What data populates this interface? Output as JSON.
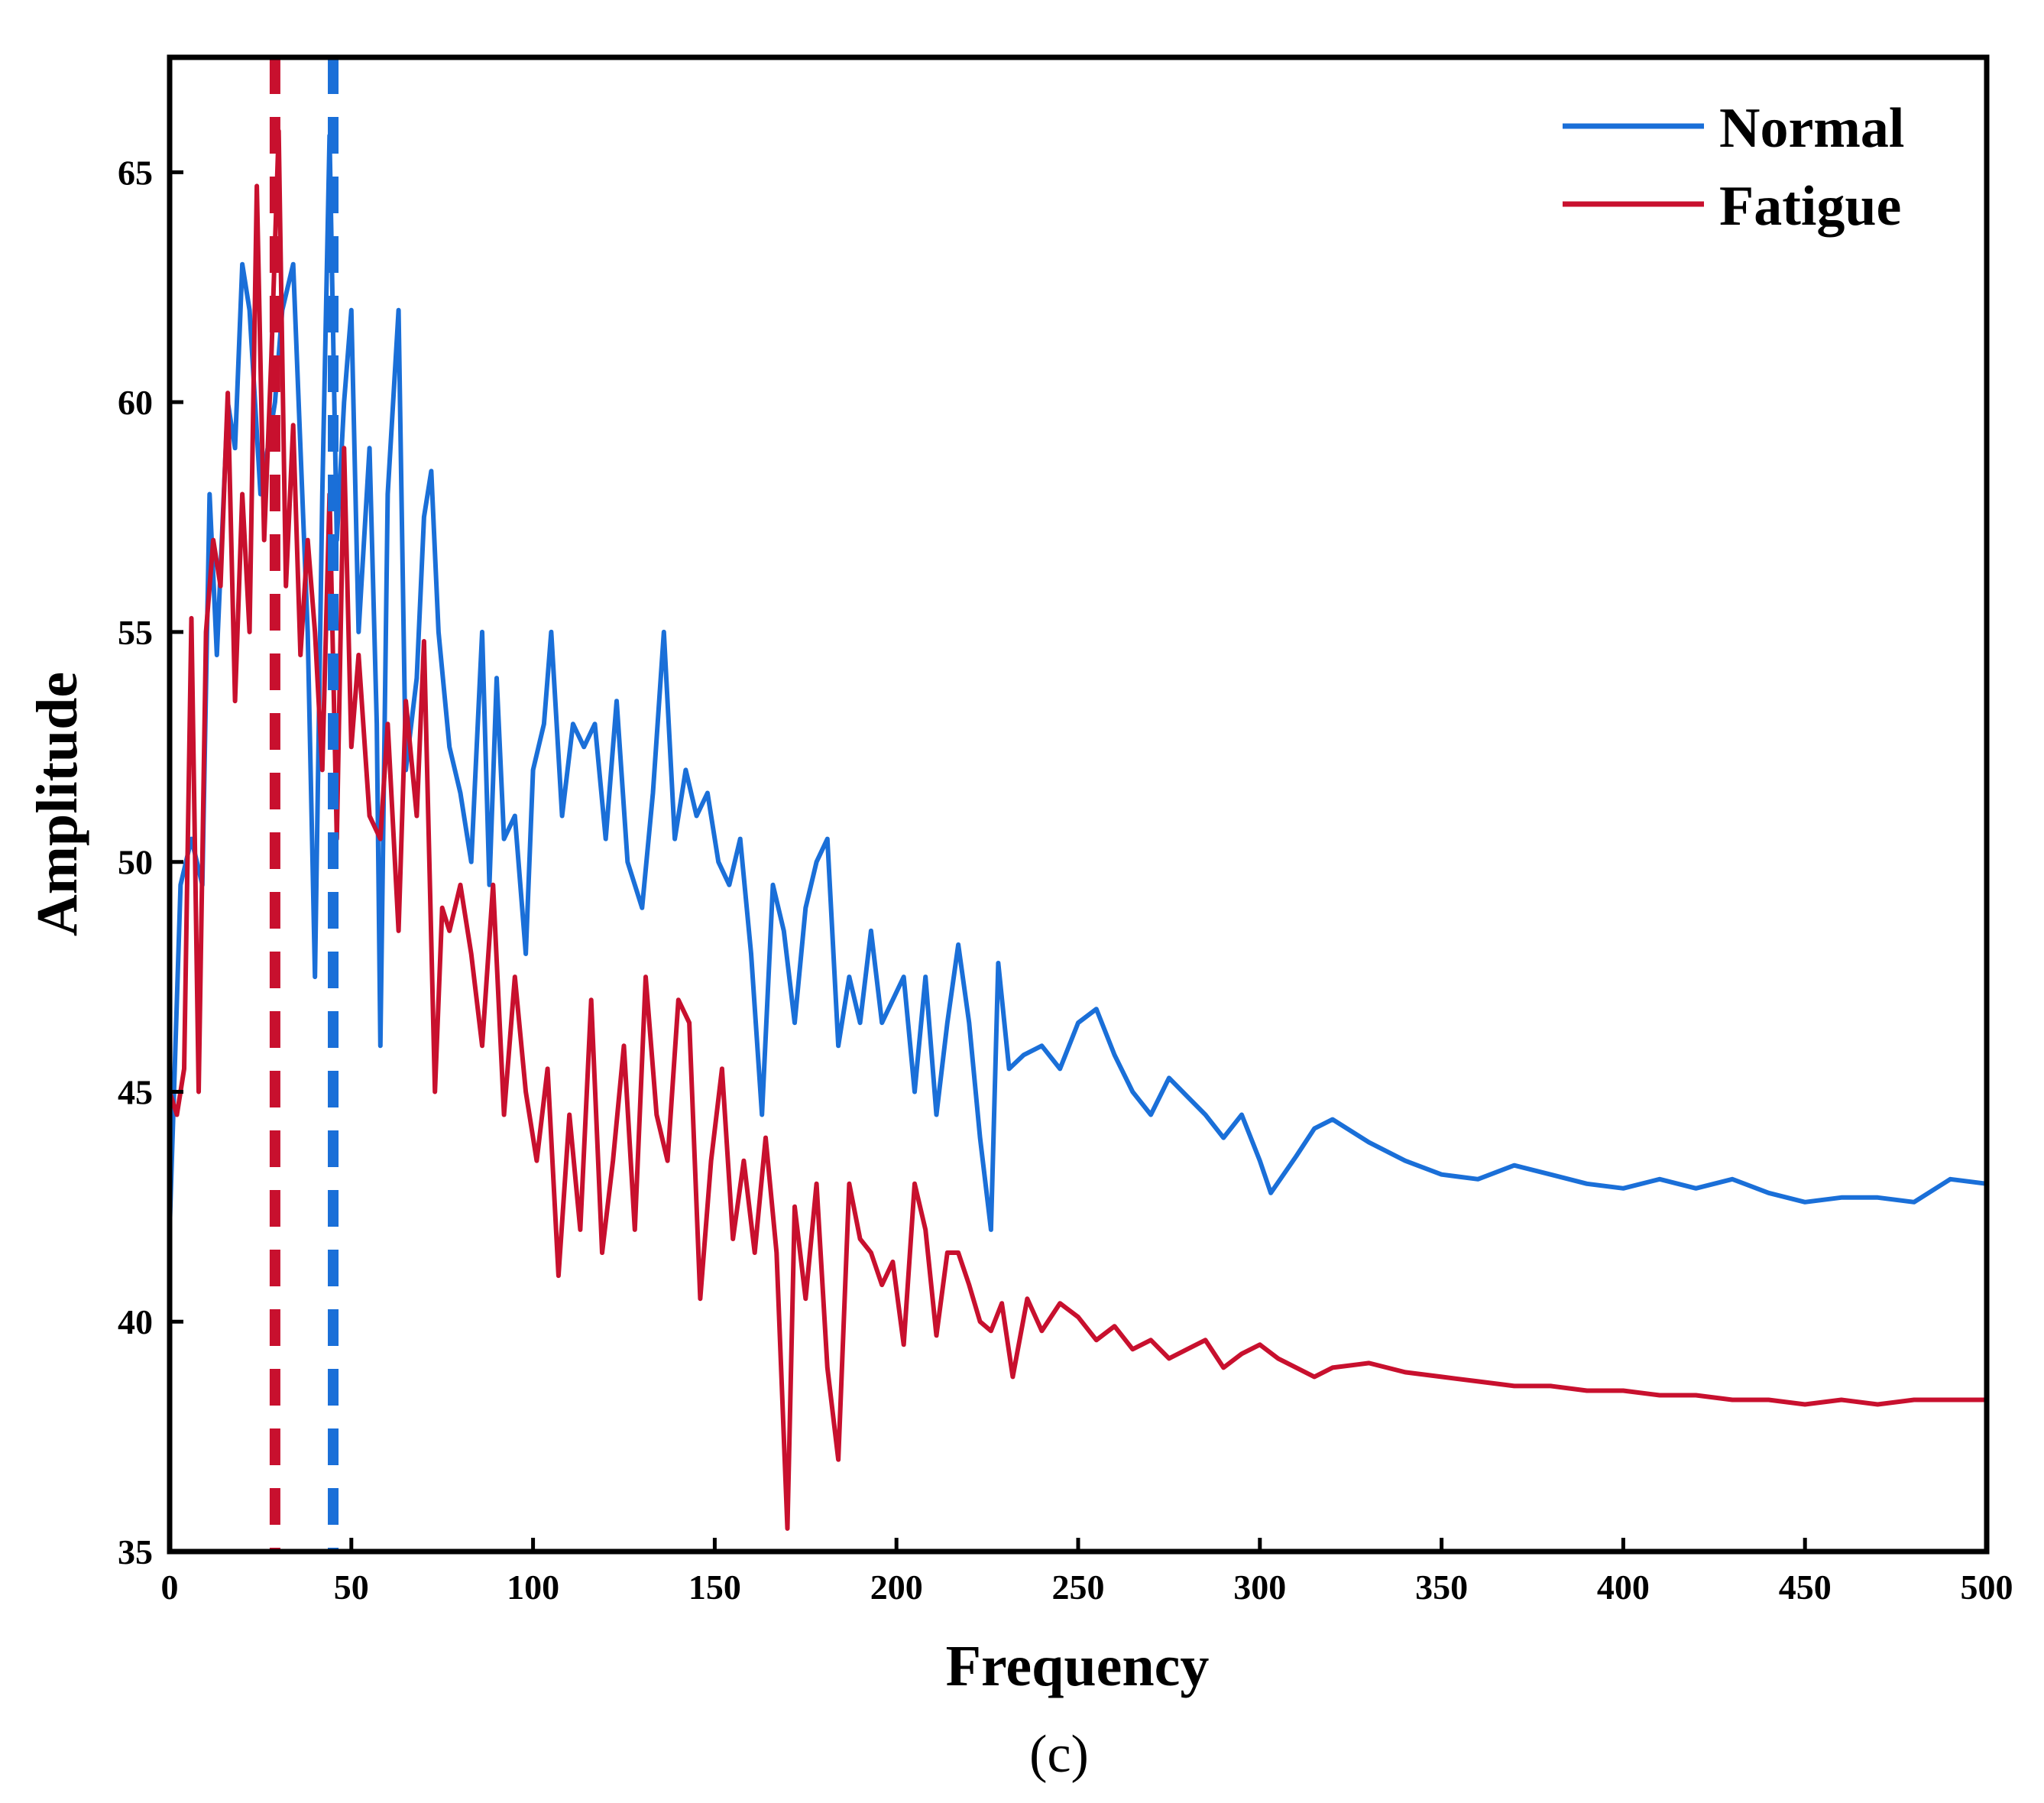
{
  "chart_data": {
    "type": "line",
    "title": "",
    "xlabel": "Frequency",
    "ylabel": "Amplitude",
    "caption": "(c)",
    "xlim": [
      0,
      500
    ],
    "ylim": [
      35,
      67.5
    ],
    "xticks": [
      0,
      50,
      100,
      150,
      200,
      250,
      300,
      350,
      400,
      450,
      500
    ],
    "yticks": [
      35,
      40,
      45,
      50,
      55,
      60,
      65
    ],
    "grid": false,
    "legend_position": "top-right",
    "reference_lines": [
      {
        "name": "Fatigue",
        "x": 29,
        "color": "#c8102e",
        "style": "dashed"
      },
      {
        "name": "Normal",
        "x": 45,
        "color": "#1a6fd8",
        "style": "dashed"
      }
    ],
    "series": [
      {
        "name": "Normal",
        "color": "#1a6fd8",
        "x": [
          0,
          3,
          6,
          9,
          11,
          13,
          16,
          18,
          20,
          22,
          25,
          27,
          29,
          31,
          34,
          36,
          38,
          40,
          42,
          44,
          46,
          48,
          50,
          52,
          55,
          57,
          58,
          60,
          63,
          65,
          68,
          70,
          72,
          74,
          77,
          80,
          83,
          86,
          88,
          90,
          92,
          95,
          98,
          100,
          103,
          105,
          108,
          111,
          114,
          117,
          120,
          123,
          126,
          130,
          133,
          136,
          139,
          142,
          145,
          148,
          151,
          154,
          157,
          160,
          163,
          166,
          169,
          172,
          175,
          178,
          181,
          184,
          187,
          190,
          193,
          196,
          199,
          202,
          205,
          208,
          211,
          214,
          217,
          220,
          223,
          226,
          228,
          231,
          235,
          240,
          245,
          250,
          255,
          260,
          265,
          270,
          275,
          280,
          285,
          290,
          295,
          300,
          303,
          310,
          315,
          320,
          330,
          340,
          350,
          360,
          370,
          380,
          390,
          400,
          410,
          420,
          430,
          440,
          450,
          460,
          470,
          480,
          490,
          500
        ],
        "values": [
          42,
          49.5,
          50.5,
          49.5,
          58,
          54.5,
          60,
          59,
          63,
          62,
          58,
          59,
          60,
          62,
          63,
          59,
          55,
          47.5,
          58,
          65.8,
          57,
          60,
          62,
          55,
          59,
          53,
          46,
          58,
          62,
          52,
          54,
          57.5,
          58.5,
          55,
          52.5,
          51.5,
          50,
          55,
          49.5,
          54,
          50.5,
          51,
          48,
          52,
          53,
          55,
          51,
          53,
          52.5,
          53,
          50.5,
          53.5,
          50,
          49,
          51.5,
          55,
          50.5,
          52,
          51,
          51.5,
          50,
          49.5,
          50.5,
          48,
          44.5,
          49.5,
          48.5,
          46.5,
          49,
          50,
          50.5,
          46,
          47.5,
          46.5,
          48.5,
          46.5,
          47,
          47.5,
          45,
          47.5,
          44.5,
          46.5,
          48.2,
          46.5,
          44,
          42,
          47.8,
          45.5,
          45.8,
          46,
          45.5,
          46.5,
          46.8,
          45.8,
          45,
          44.5,
          45.3,
          44.9,
          44.5,
          44,
          44.5,
          43.5,
          42.8,
          43.6,
          44.2,
          44.4,
          43.9,
          43.5,
          43.2,
          43.1,
          43.4,
          43.2,
          43.0,
          42.9,
          43.1,
          42.9,
          43.1,
          42.8,
          42.6,
          42.7,
          42.7,
          42.6,
          43.1,
          43.0
        ]
      },
      {
        "name": "Fatigue",
        "color": "#c8102e",
        "x": [
          0,
          2,
          4,
          6,
          8,
          10,
          12,
          14,
          16,
          18,
          20,
          22,
          24,
          26,
          28,
          30,
          32,
          34,
          36,
          38,
          40,
          42,
          44,
          46,
          48,
          50,
          52,
          55,
          58,
          60,
          63,
          65,
          68,
          70,
          73,
          75,
          77,
          80,
          83,
          86,
          89,
          92,
          95,
          98,
          101,
          104,
          107,
          110,
          113,
          116,
          119,
          122,
          125,
          128,
          131,
          134,
          137,
          140,
          143,
          146,
          149,
          152,
          155,
          158,
          161,
          164,
          167,
          170,
          172,
          175,
          178,
          181,
          184,
          187,
          190,
          193,
          196,
          199,
          202,
          205,
          208,
          211,
          214,
          217,
          220,
          223,
          226,
          229,
          232,
          236,
          240,
          245,
          250,
          255,
          260,
          265,
          270,
          275,
          280,
          285,
          290,
          295,
          300,
          305,
          310,
          315,
          320,
          330,
          340,
          350,
          360,
          370,
          380,
          390,
          400,
          410,
          420,
          430,
          440,
          450,
          460,
          470,
          480,
          490,
          500
        ],
        "values": [
          45,
          44.5,
          45.5,
          55.3,
          45,
          55,
          57,
          56,
          60.2,
          53.5,
          58,
          55,
          64.7,
          57,
          61,
          65.9,
          56,
          59.5,
          54.5,
          57,
          55,
          52,
          58,
          50.5,
          59,
          52.5,
          54.5,
          51,
          50.5,
          53,
          48.5,
          53.5,
          51,
          54.8,
          45,
          49,
          48.5,
          49.5,
          48,
          46,
          49.5,
          44.5,
          47.5,
          45,
          43.5,
          45.5,
          41,
          44.5,
          42,
          47,
          41.5,
          43.5,
          46,
          42,
          47.5,
          44.5,
          43.5,
          47,
          46.5,
          40.5,
          43.5,
          45.5,
          41.8,
          43.5,
          41.5,
          44,
          41.5,
          35.5,
          42.5,
          40.5,
          43,
          39,
          37,
          43,
          41.8,
          41.5,
          40.8,
          41.3,
          39.5,
          43,
          42,
          39.7,
          41.5,
          41.5,
          40.8,
          40,
          39.8,
          40.4,
          38.8,
          40.5,
          39.8,
          40.4,
          40.1,
          39.6,
          39.9,
          39.4,
          39.6,
          39.2,
          39.4,
          39.6,
          39.0,
          39.3,
          39.5,
          39.2,
          39.0,
          38.8,
          39.0,
          39.1,
          38.9,
          38.8,
          38.7,
          38.6,
          38.6,
          38.5,
          38.5,
          38.4,
          38.4,
          38.3,
          38.3,
          38.2,
          38.3,
          38.2,
          38.3,
          38.3,
          38.3
        ]
      }
    ]
  }
}
